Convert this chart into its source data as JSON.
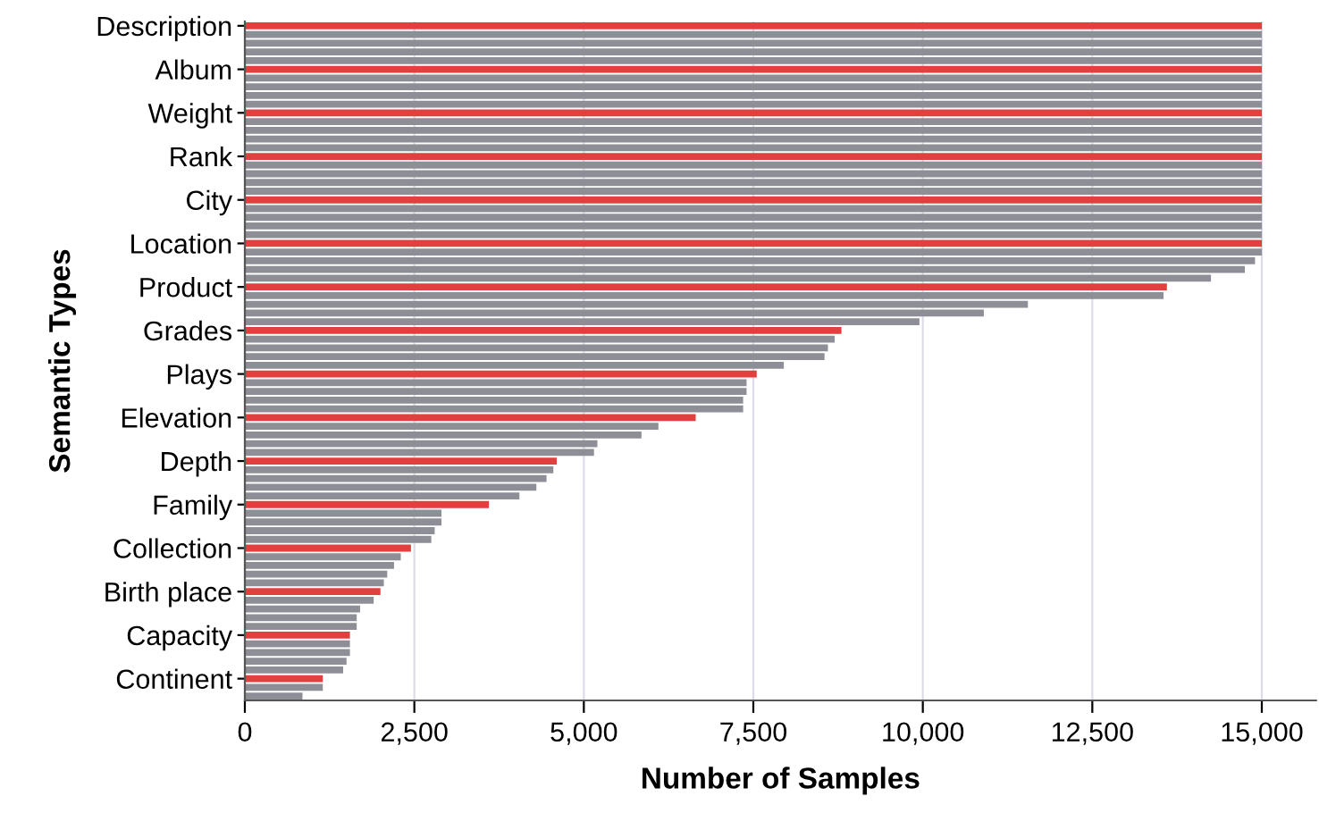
{
  "chart_data": {
    "type": "bar",
    "orientation": "horizontal",
    "xlabel": "Number of Samples",
    "ylabel": "Semantic Types",
    "categories": [
      "Description",
      null,
      null,
      null,
      null,
      "Album",
      null,
      null,
      null,
      null,
      "Weight",
      null,
      null,
      null,
      null,
      "Rank",
      null,
      null,
      null,
      null,
      "City",
      null,
      null,
      null,
      null,
      "Location",
      null,
      null,
      null,
      null,
      "Product",
      null,
      null,
      null,
      null,
      "Grades",
      null,
      null,
      null,
      null,
      "Plays",
      null,
      null,
      null,
      null,
      "Elevation",
      null,
      null,
      null,
      null,
      "Depth",
      null,
      null,
      null,
      null,
      "Family",
      null,
      null,
      null,
      null,
      "Collection",
      null,
      null,
      null,
      null,
      "Birth place",
      null,
      null,
      null,
      null,
      "Capacity",
      null,
      null,
      null,
      null,
      "Continent",
      null,
      null
    ],
    "values": [
      15000,
      15000,
      15000,
      15000,
      15000,
      15000,
      15000,
      15000,
      15000,
      15000,
      15000,
      15000,
      15000,
      15000,
      15000,
      15000,
      15000,
      15000,
      15000,
      15000,
      15000,
      15000,
      15000,
      15000,
      15000,
      15000,
      15000,
      14900,
      14750,
      14250,
      13600,
      13550,
      11550,
      10900,
      9950,
      8800,
      8700,
      8600,
      8550,
      7950,
      7550,
      7400,
      7400,
      7350,
      7350,
      6650,
      6100,
      5850,
      5200,
      5150,
      4600,
      4550,
      4450,
      4300,
      4050,
      3600,
      2900,
      2900,
      2800,
      2750,
      2450,
      2300,
      2200,
      2100,
      2050,
      2000,
      1900,
      1700,
      1650,
      1650,
      1550,
      1550,
      1550,
      1500,
      1450,
      1150,
      1150,
      850
    ],
    "colors": [
      "#e2403f",
      "#8e8e96",
      "#8e8e96",
      "#8e8e96",
      "#8e8e96",
      "#e2403f",
      "#8e8e96",
      "#8e8e96",
      "#8e8e96",
      "#8e8e96",
      "#e2403f",
      "#8e8e96",
      "#8e8e96",
      "#8e8e96",
      "#8e8e96",
      "#e2403f",
      "#8e8e96",
      "#8e8e96",
      "#8e8e96",
      "#8e8e96",
      "#e2403f",
      "#8e8e96",
      "#8e8e96",
      "#8e8e96",
      "#8e8e96",
      "#e2403f",
      "#8e8e96",
      "#8e8e96",
      "#8e8e96",
      "#8e8e96",
      "#e2403f",
      "#8e8e96",
      "#8e8e96",
      "#8e8e96",
      "#8e8e96",
      "#e2403f",
      "#8e8e96",
      "#8e8e96",
      "#8e8e96",
      "#8e8e96",
      "#e2403f",
      "#8e8e96",
      "#8e8e96",
      "#8e8e96",
      "#8e8e96",
      "#e2403f",
      "#8e8e96",
      "#8e8e96",
      "#8e8e96",
      "#8e8e96",
      "#e2403f",
      "#8e8e96",
      "#8e8e96",
      "#8e8e96",
      "#8e8e96",
      "#e2403f",
      "#8e8e96",
      "#8e8e96",
      "#8e8e96",
      "#8e8e96",
      "#e2403f",
      "#8e8e96",
      "#8e8e96",
      "#8e8e96",
      "#8e8e96",
      "#e2403f",
      "#8e8e96",
      "#8e8e96",
      "#8e8e96",
      "#8e8e96",
      "#e2403f",
      "#8e8e96",
      "#8e8e96",
      "#8e8e96",
      "#8e8e96",
      "#e2403f",
      "#8e8e96",
      "#8e8e96"
    ],
    "xlim": [
      0,
      15800
    ],
    "xticks": [
      0,
      {
        "value": 2500,
        "label": "2,500"
      },
      {
        "value": 5000,
        "label": "5,000"
      },
      {
        "value": 7500,
        "label": "7,500"
      },
      {
        "value": 10000,
        "label": "10,000"
      },
      {
        "value": 12500,
        "label": "12,500"
      },
      {
        "value": 15000,
        "label": "15,000"
      }
    ],
    "grid": "x",
    "legend": false
  }
}
